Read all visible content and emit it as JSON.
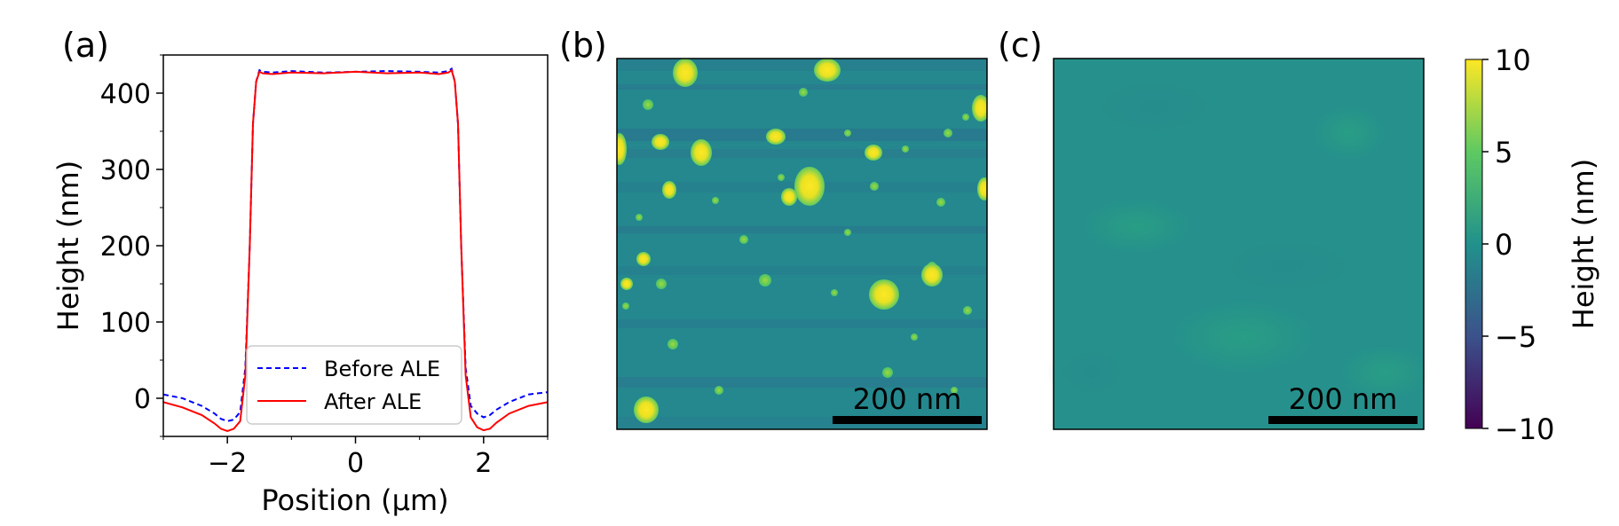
{
  "panels": {
    "a": {
      "label": "(a)"
    },
    "b": {
      "label": "(b)",
      "scalebar": "200 nm"
    },
    "c": {
      "label": "(c)",
      "scalebar": "200 nm"
    }
  },
  "colorbar": {
    "label": "Height (nm)",
    "ticks": [
      "10",
      "5",
      "0",
      "−5",
      "−10"
    ],
    "range": [
      -10,
      10
    ],
    "colors": [
      "#440154",
      "#3b528b",
      "#21918c",
      "#5ec962",
      "#fde725"
    ]
  },
  "chart_data": [
    {
      "type": "line",
      "panel": "(a)",
      "xlabel": "Position (μm)",
      "ylabel": "Height (nm)",
      "xlim": [
        -3,
        3
      ],
      "ylim": [
        -50,
        450
      ],
      "xticks": [
        "−2",
        "0",
        "2"
      ],
      "yticks": [
        "0",
        "100",
        "200",
        "300",
        "400"
      ],
      "legend_position": "lower-center",
      "series": [
        {
          "name": "Before ALE",
          "color": "#0000ff",
          "style": "dashed",
          "x": [
            -3.0,
            -2.7,
            -2.4,
            -2.2,
            -2.1,
            -2.0,
            -1.9,
            -1.8,
            -1.72,
            -1.65,
            -1.6,
            -1.55,
            -1.5,
            -1.45,
            -1.3,
            -1.0,
            -0.5,
            0.0,
            0.5,
            1.0,
            1.3,
            1.45,
            1.5,
            1.55,
            1.6,
            1.65,
            1.72,
            1.8,
            1.9,
            2.0,
            2.1,
            2.2,
            2.4,
            2.7,
            3.0
          ],
          "y": [
            5,
            0,
            -10,
            -20,
            -27,
            -30,
            -28,
            -18,
            40,
            200,
            360,
            415,
            430,
            428,
            427,
            429,
            427,
            428,
            429,
            428,
            427,
            429,
            432,
            415,
            360,
            200,
            40,
            -10,
            -20,
            -25,
            -22,
            -15,
            -5,
            5,
            8
          ]
        },
        {
          "name": "After ALE",
          "color": "#ff0000",
          "style": "solid",
          "x": [
            -3.0,
            -2.7,
            -2.4,
            -2.2,
            -2.1,
            -2.0,
            -1.9,
            -1.8,
            -1.72,
            -1.65,
            -1.6,
            -1.55,
            -1.5,
            -1.45,
            -1.3,
            -1.0,
            -0.5,
            0.0,
            0.5,
            1.0,
            1.3,
            1.45,
            1.5,
            1.55,
            1.6,
            1.65,
            1.72,
            1.8,
            1.9,
            2.0,
            2.1,
            2.2,
            2.4,
            2.7,
            3.0
          ],
          "y": [
            -5,
            -12,
            -22,
            -33,
            -40,
            -43,
            -40,
            -30,
            30,
            200,
            360,
            415,
            428,
            426,
            425,
            427,
            426,
            428,
            426,
            427,
            425,
            427,
            430,
            415,
            360,
            200,
            30,
            -25,
            -38,
            -42,
            -40,
            -32,
            -20,
            -10,
            -5
          ]
        }
      ]
    }
  ]
}
